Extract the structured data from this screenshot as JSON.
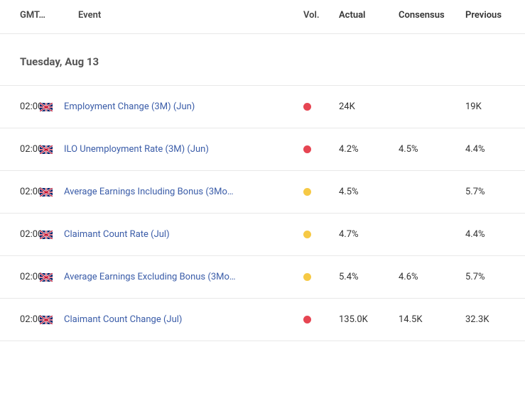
{
  "columns": {
    "time": "GMT…",
    "event": "Event",
    "vol": "Vol.",
    "actual": "Actual",
    "consensus": "Consensus",
    "previous": "Previous"
  },
  "date_header": "Tuesday, Aug 13",
  "vol_colors": {
    "high": "#e64552",
    "medium": "#f6c945"
  },
  "flag": "uk",
  "rows": [
    {
      "time": "02:00",
      "event": "Employment Change (3M) (Jun)",
      "vol": "high",
      "actual": "24K",
      "consensus": "",
      "previous": "19K"
    },
    {
      "time": "02:00",
      "event": "ILO Unemployment Rate (3M) (Jun)",
      "vol": "high",
      "actual": "4.2%",
      "consensus": "4.5%",
      "previous": "4.4%"
    },
    {
      "time": "02:00",
      "event": "Average Earnings Including Bonus (3Mo…",
      "vol": "medium",
      "actual": "4.5%",
      "consensus": "",
      "previous": "5.7%"
    },
    {
      "time": "02:00",
      "event": "Claimant Count Rate (Jul)",
      "vol": "medium",
      "actual": "4.7%",
      "consensus": "",
      "previous": "4.4%"
    },
    {
      "time": "02:00",
      "event": "Average Earnings Excluding Bonus (3Mo…",
      "vol": "medium",
      "actual": "5.4%",
      "consensus": "4.6%",
      "previous": "5.7%"
    },
    {
      "time": "02:00",
      "event": "Claimant Count Change (Jul)",
      "vol": "high",
      "actual": "135.0K",
      "consensus": "14.5K",
      "previous": "32.3K"
    }
  ]
}
